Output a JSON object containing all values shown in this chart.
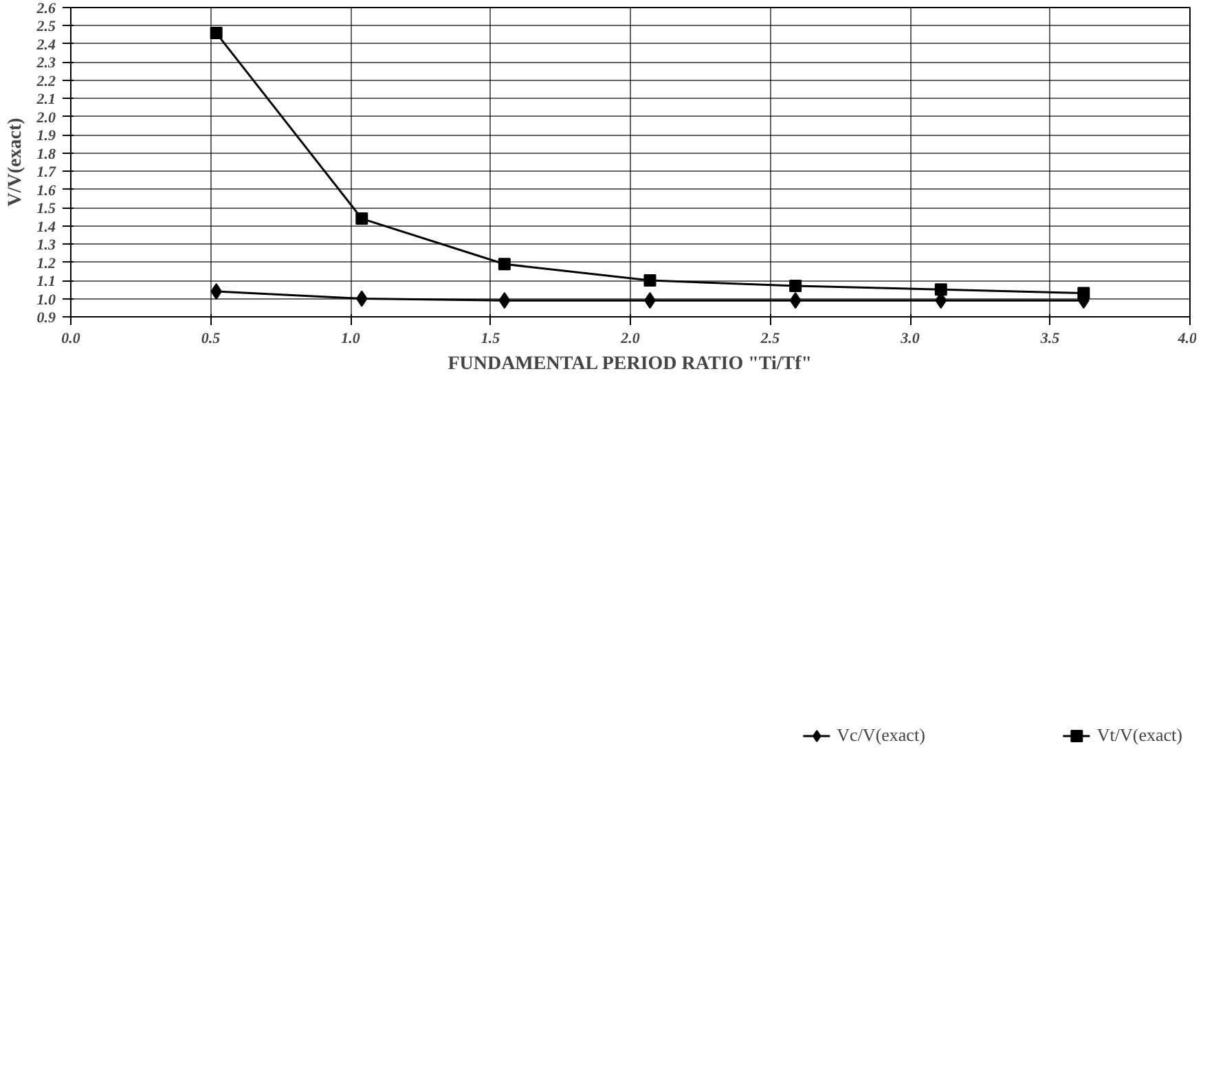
{
  "chart_data": {
    "type": "line",
    "xlabel": "FUNDAMENTAL PERIOD RATIO \"Ti/Tf\"",
    "ylabel": "V/V(exact)",
    "x": [
      0.52,
      1.04,
      1.55,
      2.07,
      2.59,
      3.11,
      3.62
    ],
    "series": [
      {
        "name": "Vc/V(exact)",
        "color": "#000000",
        "marker": "diamond",
        "values": [
          1.04,
          1.0,
          0.99,
          0.99,
          0.99,
          0.99,
          0.99
        ]
      },
      {
        "name": "Vt/V(exact)",
        "color": "#000000",
        "marker": "square",
        "values": [
          2.46,
          1.44,
          1.19,
          1.1,
          1.07,
          1.05,
          1.03
        ]
      }
    ],
    "xlim": [
      0.0,
      4.0
    ],
    "xticks": [
      {
        "value": 0,
        "label": "0.0"
      },
      0.5,
      {
        "value": 1,
        "label": "1.0"
      },
      1.5,
      {
        "value": 2,
        "label": "2.0"
      },
      2.5,
      {
        "value": 3,
        "label": "3.0"
      },
      3.5,
      {
        "value": 4,
        "label": "4.0"
      }
    ],
    "ylim": [
      0.9,
      2.6
    ],
    "yticks": [
      0.9,
      {
        "value": 1,
        "label": "1.0"
      },
      1.1,
      1.2,
      1.3,
      1.4,
      1.5,
      1.6,
      1.7,
      1.8,
      1.9,
      {
        "value": 2,
        "label": "2.0"
      },
      2.1,
      2.2,
      2.3,
      2.4,
      2.5,
      2.6
    ],
    "grid": true,
    "legend": "bottom",
    "line_style": "solid"
  }
}
